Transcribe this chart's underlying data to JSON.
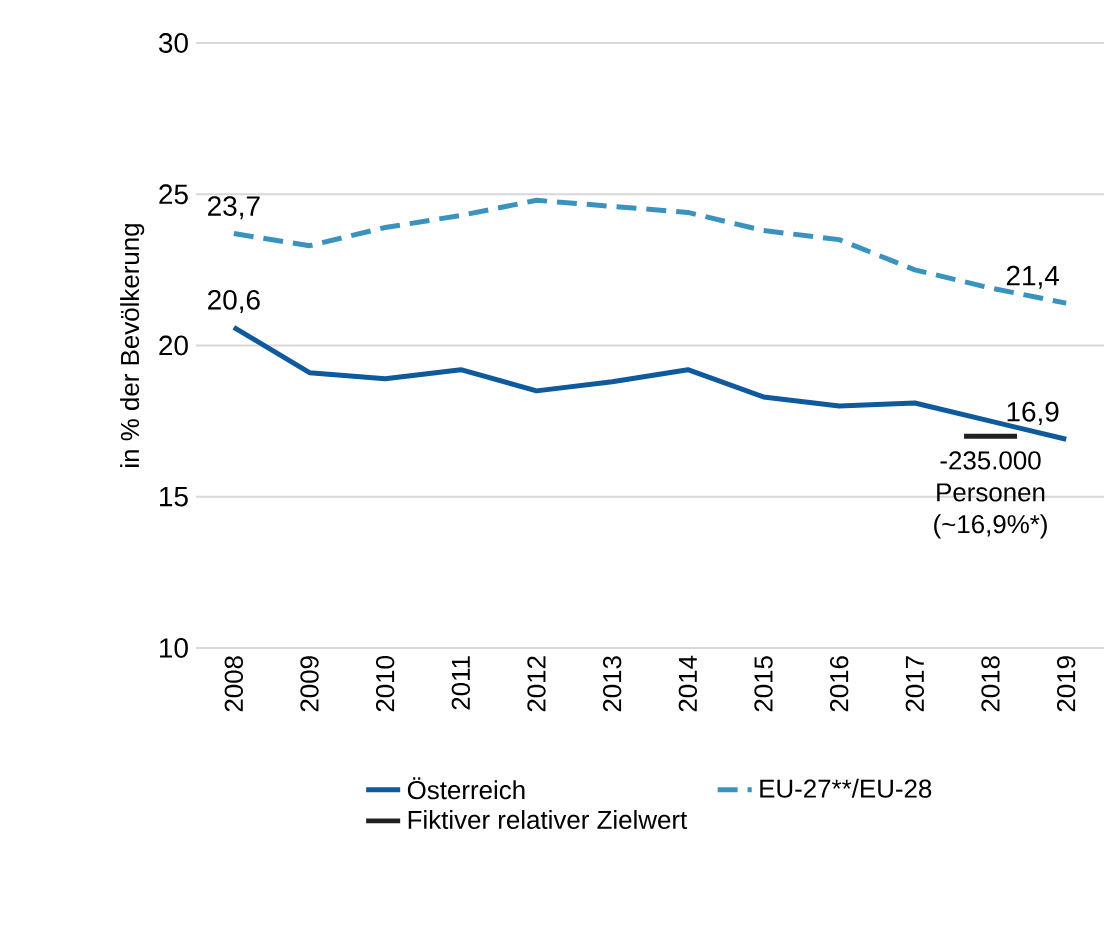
{
  "chart_data": {
    "type": "line",
    "ylabel": "in % der Bevölkerung",
    "x": [
      2008,
      2009,
      2010,
      2011,
      2012,
      2013,
      2014,
      2015,
      2016,
      2017,
      2018,
      2019
    ],
    "xlim": [
      2007.5,
      2019.5
    ],
    "xticks": [
      2008,
      2009,
      2010,
      2011,
      2012,
      2013,
      2014,
      2015,
      2016,
      2017,
      2018,
      2019
    ],
    "ylim": [
      10,
      30
    ],
    "yticks": [
      10,
      15,
      20,
      25,
      30
    ],
    "grid": "y",
    "legend": "bottom",
    "series": [
      {
        "name": "Österreich",
        "color": "#0e5a9c",
        "line_style": "solid",
        "values": [
          20.6,
          19.1,
          18.9,
          19.2,
          18.5,
          18.8,
          19.2,
          18.3,
          18.0,
          18.1,
          17.5,
          16.9
        ],
        "value_labels": [
          "20,6",
          null,
          null,
          null,
          null,
          null,
          null,
          null,
          null,
          null,
          null,
          "16,9"
        ]
      },
      {
        "name": "EU-27**/EU-28",
        "color": "#3a93bf",
        "line_style": "dashed",
        "values": [
          23.7,
          23.3,
          23.9,
          24.3,
          24.8,
          24.6,
          24.4,
          23.8,
          23.5,
          22.5,
          21.9,
          21.4
        ],
        "value_labels": [
          "23,7",
          null,
          null,
          null,
          null,
          null,
          null,
          null,
          null,
          null,
          null,
          "21,4"
        ]
      },
      {
        "name": "Fiktiver relativer Zielwert",
        "color": "#231f20",
        "line_style": "solid",
        "x": [
          2017.65,
          2018.35
        ],
        "values": [
          17.0,
          17.0
        ]
      }
    ],
    "annotations": [
      {
        "text": "-235.000 Personen (~16,9%*)",
        "x": 2018,
        "y": 17.0
      }
    ]
  }
}
